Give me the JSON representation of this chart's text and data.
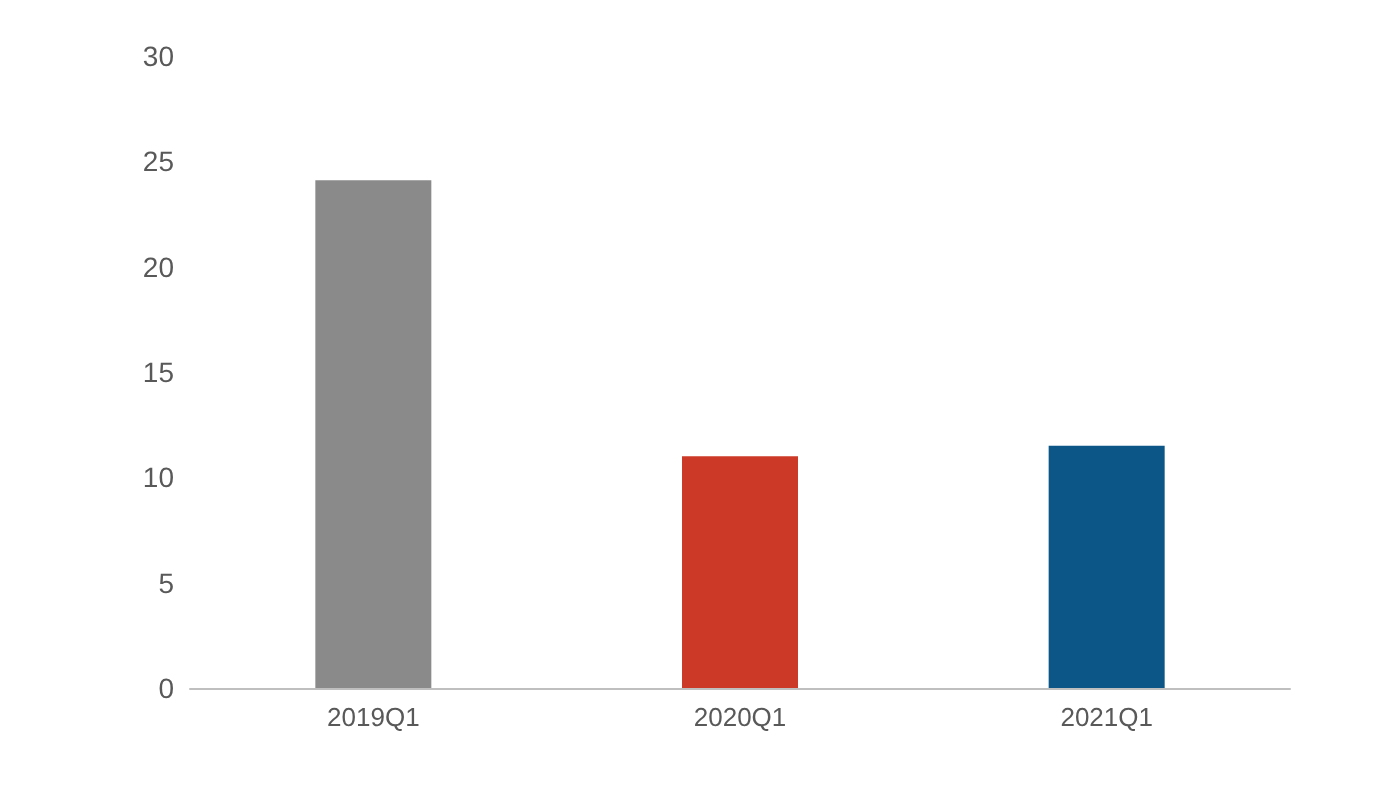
{
  "chart_data": {
    "type": "bar",
    "categories": [
      "2019Q1",
      "2020Q1",
      "2021Q1"
    ],
    "values": [
      24.1,
      11.0,
      11.5
    ],
    "colors": [
      "#8a8a8a",
      "#cc3a27",
      "#0b5587"
    ],
    "ylim": [
      0,
      30
    ],
    "yticks": [
      0,
      5,
      10,
      15,
      20,
      25,
      30
    ],
    "grid": false
  }
}
